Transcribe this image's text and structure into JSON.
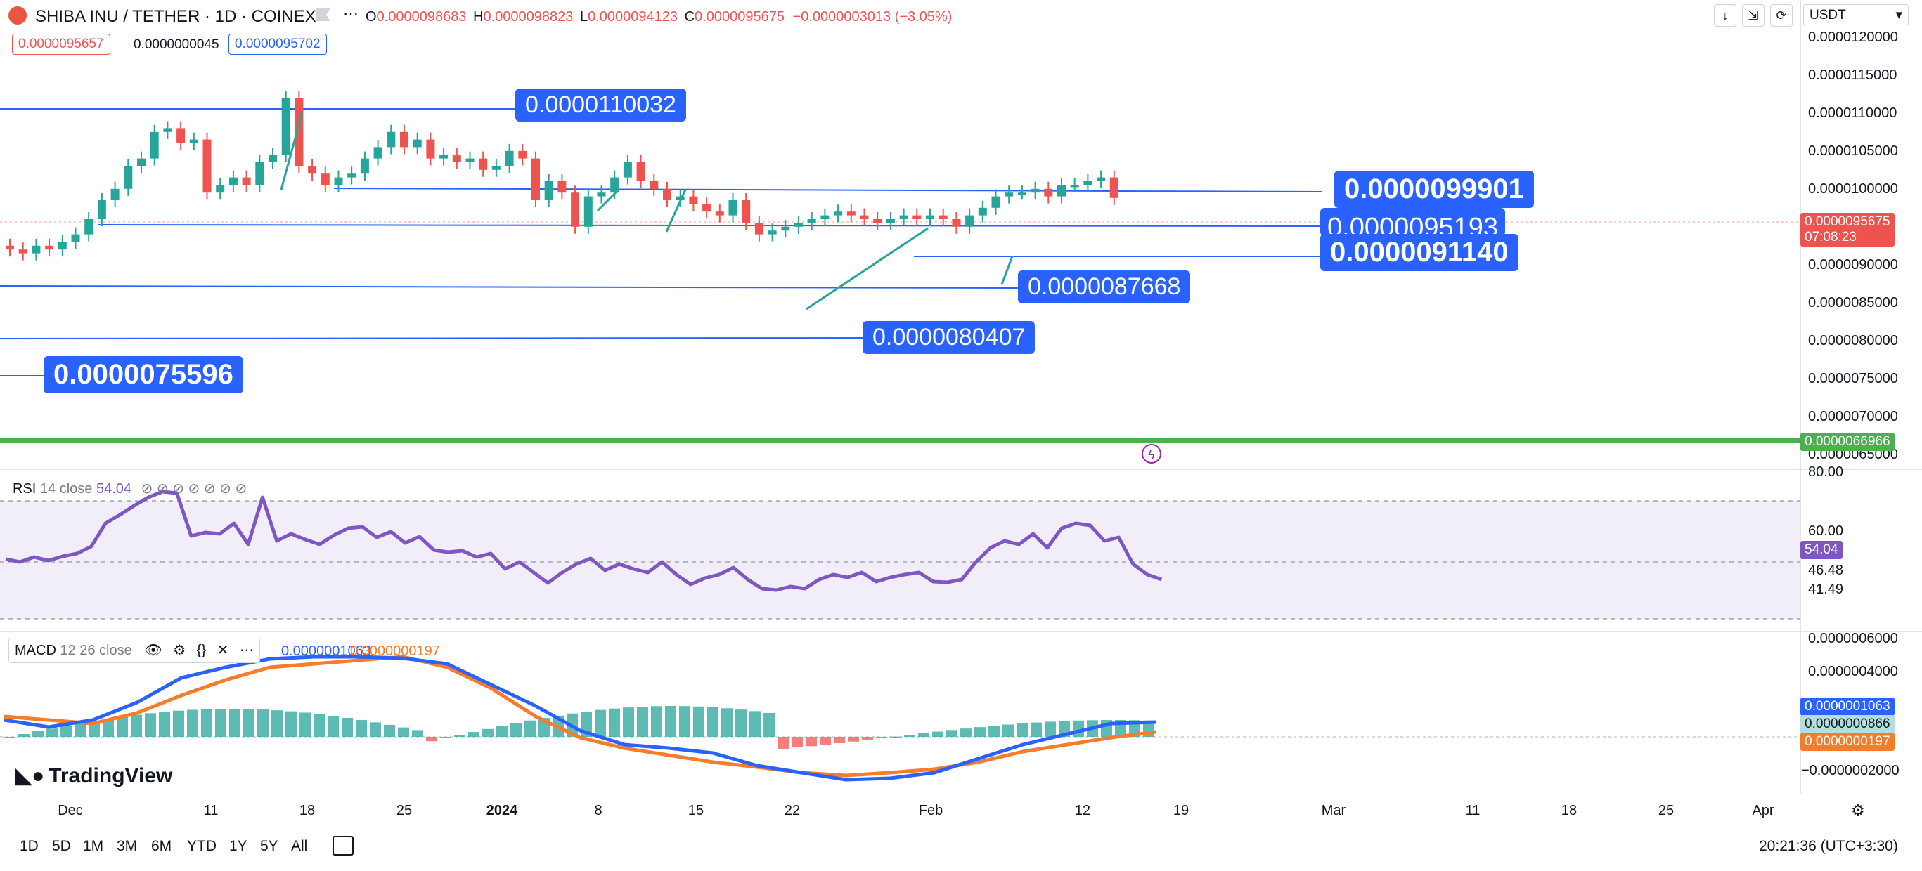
{
  "header": {
    "symbol": "SHIBA INU / TETHER · 1D · COINEX",
    "ohlc": {
      "o_label": "O",
      "o": "0.0000098683",
      "h_label": "H",
      "h": "0.0000098823",
      "l_label": "L",
      "l": "0.0000094123",
      "c_label": "C",
      "c": "0.0000095675",
      "change": "−0.0000003013 (−3.05%)"
    },
    "sell_price": "0.0000095657",
    "spread": "0.0000000045",
    "buy_price": "0.0000095702",
    "currency": "USDT"
  },
  "y_axis_labels": [
    "0.0000120000",
    "0.0000115000",
    "0.0000110000",
    "0.0000105000",
    "0.0000100000",
    "0.0000090000",
    "0.0000085000",
    "0.0000080000",
    "0.0000075000",
    "0.0000070000",
    "0.0000065000"
  ],
  "price_tags": {
    "last_price": "0.0000095675",
    "countdown": "07:08:23",
    "green_line_price": "0.0000066966"
  },
  "level_labels": {
    "l1": "0.0000110032",
    "l2": "0.0000099901",
    "l3": "0.0000095193",
    "l4": "0.0000091140",
    "l5": "0.0000087668",
    "l6": "0.0000080407",
    "l7": "0.0000075596"
  },
  "rsi": {
    "title": "RSI",
    "params": "14 close",
    "value": "54.04",
    "axis": [
      "80.00",
      "60.00",
      "46.48",
      "41.49"
    ],
    "tag": "54.04",
    "line_color": "#7e57c2"
  },
  "macd": {
    "title": "MACD",
    "params": "12 26 close",
    "value_blue": "0.0000001063",
    "value_orange": "0.0000000197",
    "axis": [
      "0.0000006000",
      "0.0000004000",
      "−0.0000002000"
    ],
    "tags": {
      "blue": "0.0000001063",
      "hist": "0.0000000866",
      "orange": "0.0000000197"
    },
    "colors": {
      "macd": "#2962ff",
      "signal": "#f57c2b"
    }
  },
  "x_axis_labels": [
    {
      "t": "Dec"
    },
    {
      "t": "11"
    },
    {
      "t": "18"
    },
    {
      "t": "25"
    },
    {
      "t": "2024",
      "bold": true
    },
    {
      "t": "8"
    },
    {
      "t": "15"
    },
    {
      "t": "22"
    },
    {
      "t": "Feb"
    },
    {
      "t": "12"
    },
    {
      "t": "19"
    },
    {
      "t": "Mar"
    },
    {
      "t": "11"
    },
    {
      "t": "18"
    },
    {
      "t": "25"
    },
    {
      "t": "Apr"
    }
  ],
  "timeframes": [
    "1D",
    "5D",
    "1M",
    "3M",
    "6M",
    "YTD",
    "1Y",
    "5Y",
    "All"
  ],
  "clock": "20:21:36 (UTC+3:30)",
  "brand": "TradingView",
  "colors": {
    "up": "#26a69a",
    "down": "#ef5350",
    "level": "#2962ff",
    "green_line": "#4caf50"
  }
}
